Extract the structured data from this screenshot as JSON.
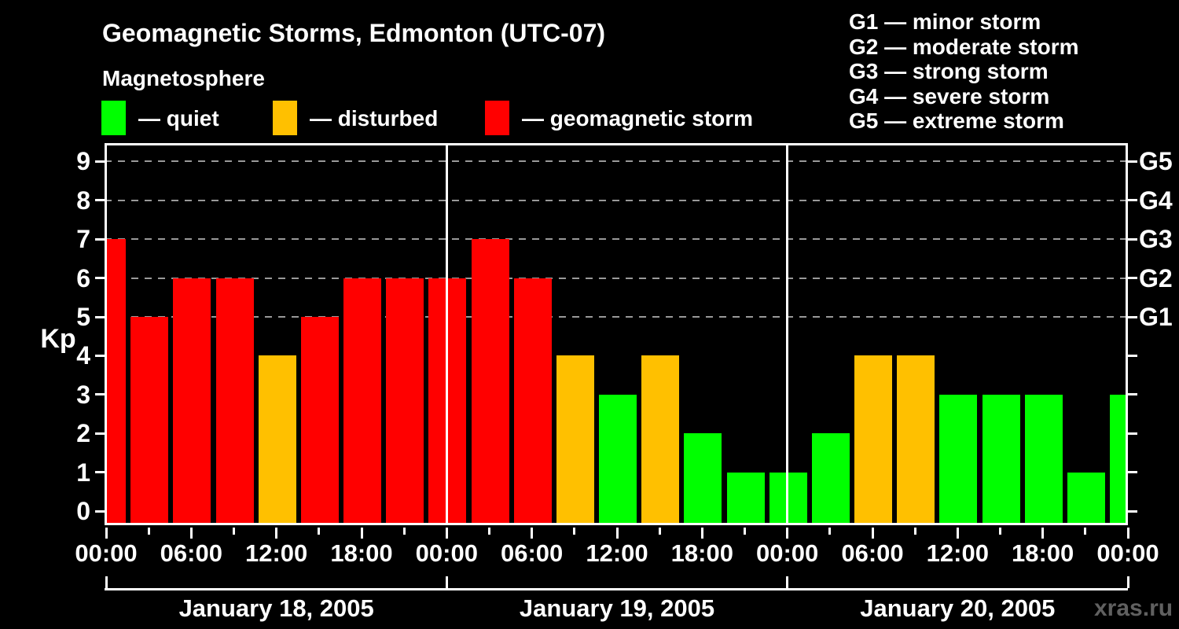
{
  "title": "Geomagnetic Storms, Edmonton (UTC-07)",
  "subtitle": "Magnetosphere",
  "legend": [
    {
      "state": "quiet",
      "label": "— quiet"
    },
    {
      "state": "disturbed",
      "label": "— disturbed"
    },
    {
      "state": "storm",
      "label": "— geomagnetic storm"
    }
  ],
  "g_legend": [
    {
      "text": "G1 — minor storm"
    },
    {
      "text": "G2 — moderate storm"
    },
    {
      "text": "G3 — strong storm"
    },
    {
      "text": "G4 — severe storm"
    },
    {
      "text": "G5 — extreme storm"
    }
  ],
  "watermark": "xras.ru",
  "colors": {
    "quiet": "#00ff00",
    "disturbed": "#ffc000",
    "storm": "#ff0000",
    "grid": "#999999",
    "frame": "#ffffff",
    "watermark": "#606060",
    "background": "#000000"
  },
  "chart_data": {
    "type": "bar",
    "title": "Geomagnetic Storms, Edmonton (UTC-07)",
    "ylabel": "Kp",
    "ylim": [
      0,
      9
    ],
    "y_ticks": [
      "0",
      "1",
      "2",
      "3",
      "4",
      "5",
      "6",
      "7",
      "8",
      "9"
    ],
    "g_scale": [
      {
        "label": "G1",
        "kp": 5
      },
      {
        "label": "G2",
        "kp": 6
      },
      {
        "label": "G3",
        "kp": 7
      },
      {
        "label": "G4",
        "kp": 8
      },
      {
        "label": "G5",
        "kp": 9
      }
    ],
    "grid_levels": [
      5,
      6,
      7,
      8,
      9
    ],
    "hours_span": 72,
    "x_major_step_hours": 6,
    "x_minor_step_hours": 3,
    "x_labels": [
      "00:00",
      "06:00",
      "12:00",
      "18:00",
      "00:00",
      "06:00",
      "12:00",
      "18:00",
      "00:00",
      "06:00",
      "12:00",
      "18:00",
      "00:00"
    ],
    "day_separators_hours": [
      24,
      48
    ],
    "dates": [
      "January 18, 2005",
      "January 19, 2005",
      "January 20, 2005"
    ],
    "bars": [
      {
        "t": 0,
        "kp": 7,
        "state": "storm"
      },
      {
        "t": 3,
        "kp": 5,
        "state": "storm"
      },
      {
        "t": 6,
        "kp": 6,
        "state": "storm"
      },
      {
        "t": 9,
        "kp": 6,
        "state": "storm"
      },
      {
        "t": 12,
        "kp": 4,
        "state": "disturbed"
      },
      {
        "t": 15,
        "kp": 5,
        "state": "storm"
      },
      {
        "t": 18,
        "kp": 6,
        "state": "storm"
      },
      {
        "t": 21,
        "kp": 6,
        "state": "storm"
      },
      {
        "t": 24,
        "kp": 6,
        "state": "storm"
      },
      {
        "t": 27,
        "kp": 7,
        "state": "storm"
      },
      {
        "t": 30,
        "kp": 6,
        "state": "storm"
      },
      {
        "t": 33,
        "kp": 4,
        "state": "disturbed"
      },
      {
        "t": 36,
        "kp": 3,
        "state": "quiet"
      },
      {
        "t": 39,
        "kp": 4,
        "state": "disturbed"
      },
      {
        "t": 42,
        "kp": 2,
        "state": "quiet"
      },
      {
        "t": 45,
        "kp": 1,
        "state": "quiet"
      },
      {
        "t": 48,
        "kp": 1,
        "state": "quiet"
      },
      {
        "t": 51,
        "kp": 2,
        "state": "quiet"
      },
      {
        "t": 54,
        "kp": 4,
        "state": "disturbed"
      },
      {
        "t": 57,
        "kp": 4,
        "state": "disturbed"
      },
      {
        "t": 60,
        "kp": 3,
        "state": "quiet"
      },
      {
        "t": 63,
        "kp": 3,
        "state": "quiet"
      },
      {
        "t": 66,
        "kp": 3,
        "state": "quiet"
      },
      {
        "t": 69,
        "kp": 1,
        "state": "quiet"
      },
      {
        "t": 72,
        "kp": 3,
        "state": "quiet"
      }
    ]
  }
}
